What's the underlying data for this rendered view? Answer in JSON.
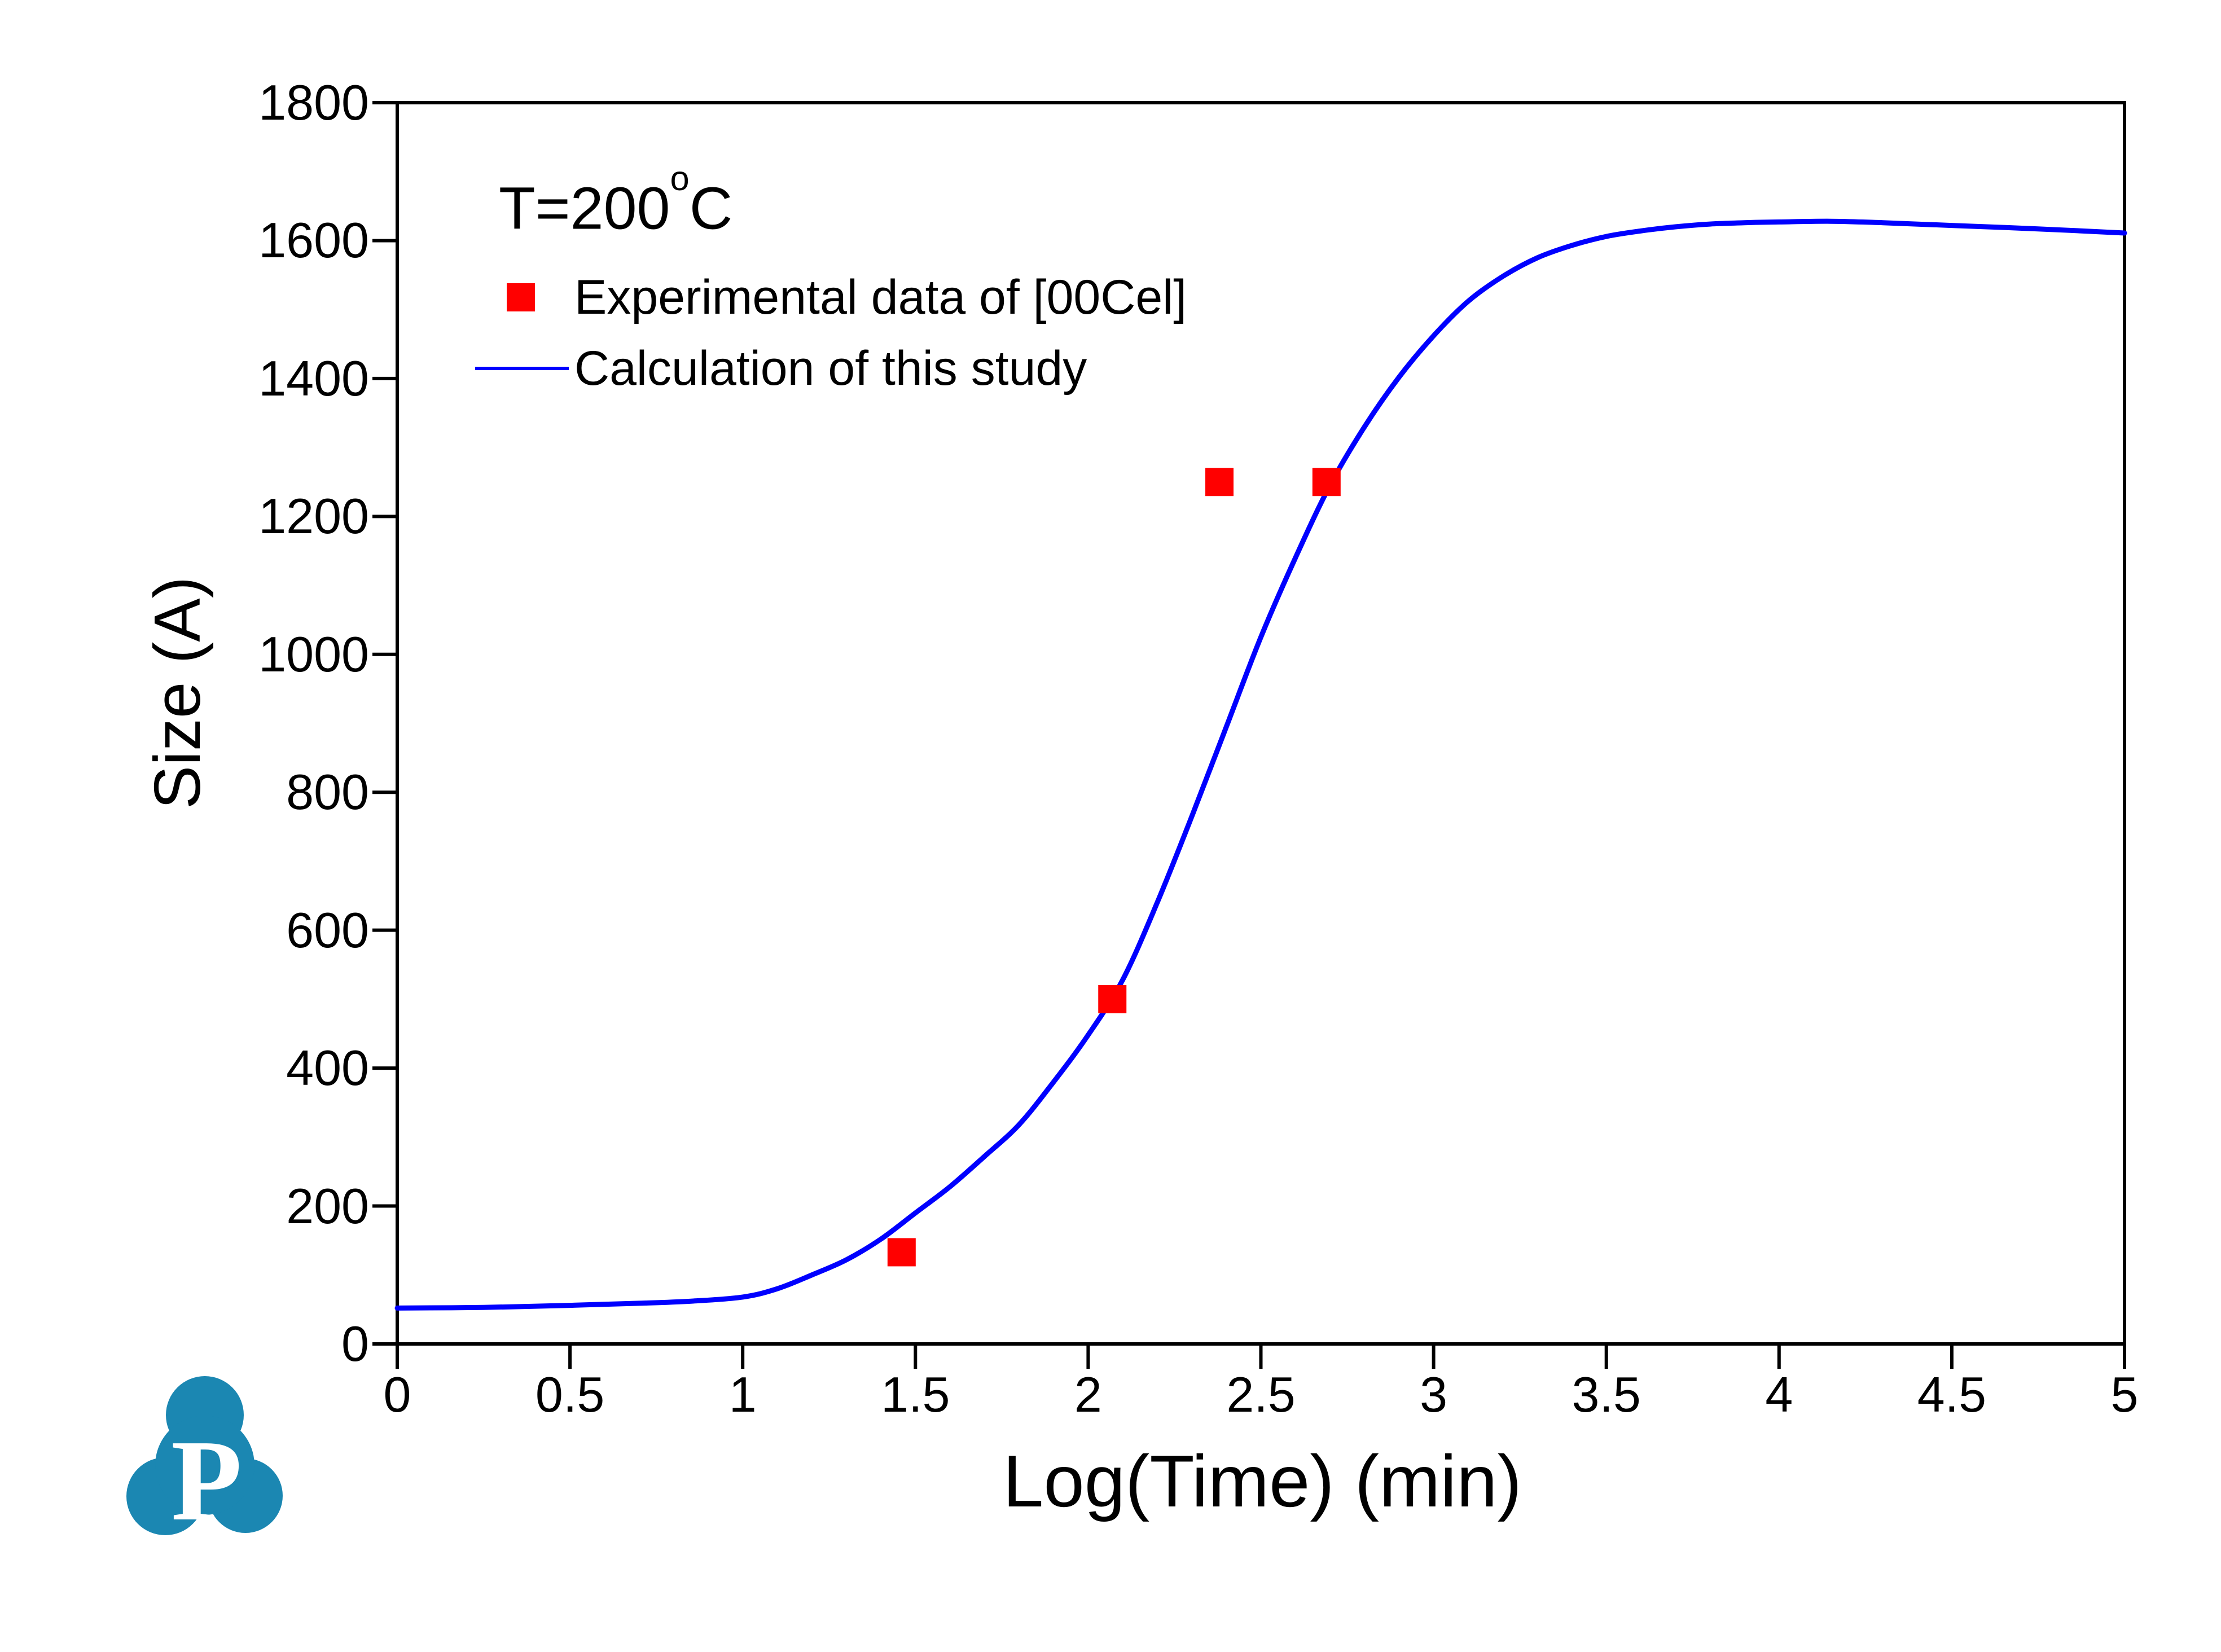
{
  "annotation": {
    "prefix": "T=200",
    "sup": "o",
    "suffix": "C"
  },
  "logo": {
    "letter": "P",
    "color": "#1b87b2"
  },
  "chart_data": {
    "type": "line",
    "title": "",
    "xlabel": "Log(Time) (min)",
    "ylabel": "Size (A)",
    "xlim": [
      0,
      5
    ],
    "ylim": [
      0,
      1800
    ],
    "grid": false,
    "legend_position": "upper-left",
    "frame_color": "#000000",
    "xtick_values": [
      0,
      0.5,
      1,
      1.5,
      2,
      2.5,
      3,
      3.5,
      4,
      4.5,
      5
    ],
    "xtick_labels": [
      "0",
      "0.5",
      "1",
      "1.5",
      "2",
      "2.5",
      "3",
      "3.5",
      "4",
      "4.5",
      "5"
    ],
    "ytick_values": [
      0,
      200,
      400,
      600,
      800,
      1000,
      1200,
      1400,
      1600,
      1800
    ],
    "ytick_labels": [
      "0",
      "200",
      "400",
      "600",
      "800",
      "1000",
      "1200",
      "1400",
      "1600",
      "1800"
    ],
    "series": [
      {
        "name": "Experimental data of [00Cel]",
        "kind": "scatter",
        "marker": "square",
        "color": "#ff0000",
        "points": [
          [
            1.46,
            133
          ],
          [
            2.07,
            500
          ],
          [
            2.38,
            1250
          ],
          [
            2.69,
            1250
          ]
        ]
      },
      {
        "name": "Calculation of this study",
        "kind": "line",
        "color": "#0000ff",
        "points": [
          [
            0,
            52
          ],
          [
            0.25,
            53
          ],
          [
            0.5,
            56
          ],
          [
            0.7,
            59
          ],
          [
            0.85,
            62
          ],
          [
            1,
            68
          ],
          [
            1.1,
            80
          ],
          [
            1.2,
            100
          ],
          [
            1.3,
            122
          ],
          [
            1.4,
            152
          ],
          [
            1.5,
            190
          ],
          [
            1.6,
            228
          ],
          [
            1.7,
            272
          ],
          [
            1.8,
            318
          ],
          [
            1.9,
            380
          ],
          [
            2,
            448
          ],
          [
            2.1,
            528
          ],
          [
            2.2,
            640
          ],
          [
            2.3,
            765
          ],
          [
            2.4,
            895
          ],
          [
            2.5,
            1025
          ],
          [
            2.6,
            1140
          ],
          [
            2.7,
            1245
          ],
          [
            2.8,
            1330
          ],
          [
            2.9,
            1402
          ],
          [
            3,
            1462
          ],
          [
            3.1,
            1512
          ],
          [
            3.2,
            1548
          ],
          [
            3.3,
            1575
          ],
          [
            3.4,
            1593
          ],
          [
            3.5,
            1606
          ],
          [
            3.6,
            1614
          ],
          [
            3.7,
            1620
          ],
          [
            3.8,
            1624
          ],
          [
            3.9,
            1626
          ],
          [
            4,
            1627
          ],
          [
            4.15,
            1628
          ],
          [
            4.3,
            1626
          ],
          [
            4.5,
            1622
          ],
          [
            4.75,
            1617
          ],
          [
            5,
            1611
          ]
        ]
      }
    ]
  }
}
